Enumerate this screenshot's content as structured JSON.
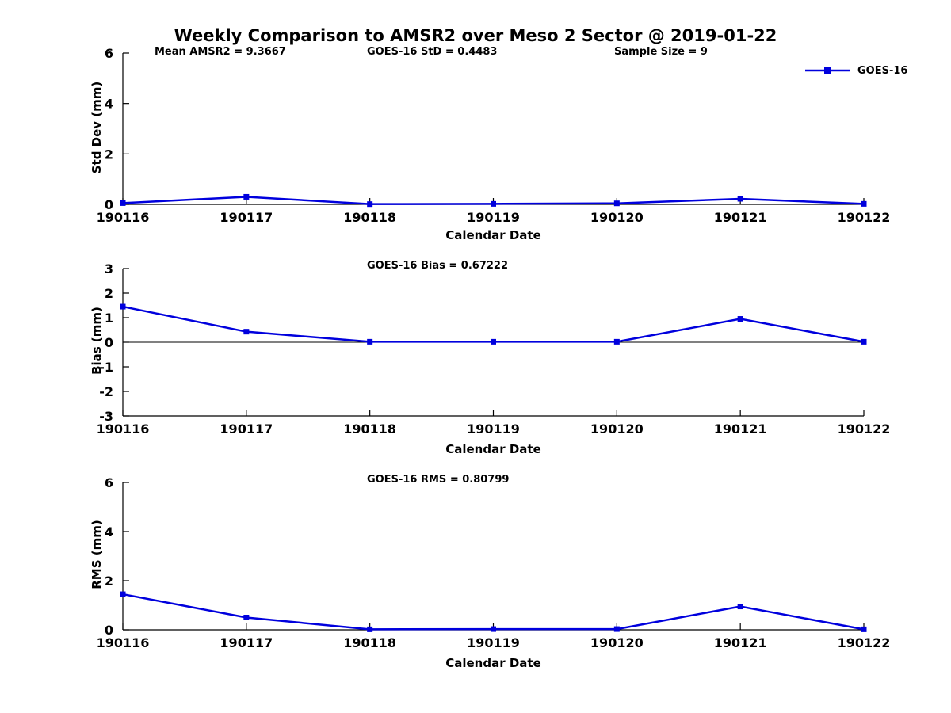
{
  "title": "Weekly Comparison to AMSR2 over Meso 2 Sector @ 2019-01-22",
  "header_stats": {
    "mean_amsr2": "Mean AMSR2 = 9.3667",
    "goes16_std": "GOES-16 StD = 0.4483",
    "sample_size": "Sample Size = 9"
  },
  "legend": {
    "label": "GOES-16",
    "color": "#0000dd",
    "position": "top-right",
    "marker": "square"
  },
  "colors": {
    "series": "#0000dd",
    "axis": "#000000",
    "background": "#ffffff",
    "text": "#000000"
  },
  "chart_data": [
    {
      "type": "line",
      "panel": "std-dev",
      "annotation": "",
      "ylabel": "Std Dev (mm)",
      "xlabel": "Calendar Date",
      "ylim": [
        0,
        6
      ],
      "yticks": [
        0,
        2,
        4,
        6
      ],
      "grid": false,
      "zero_line": false,
      "categories": [
        "190116",
        "190117",
        "190118",
        "190119",
        "190120",
        "190121",
        "190122"
      ],
      "series": [
        {
          "name": "GOES-16",
          "color": "#0000dd",
          "marker": "square",
          "values": [
            0.05,
            0.3,
            0.01,
            0.02,
            0.04,
            0.22,
            0.02
          ]
        }
      ]
    },
    {
      "type": "line",
      "panel": "bias",
      "annotation": "GOES-16 Bias  = 0.67222",
      "ylabel": "Bias (mm)",
      "xlabel": "Calendar Date",
      "ylim": [
        -3,
        3
      ],
      "yticks": [
        3,
        2,
        1,
        0,
        -1,
        -2,
        -3
      ],
      "grid": false,
      "zero_line": true,
      "categories": [
        "190116",
        "190117",
        "190118",
        "190119",
        "190120",
        "190121",
        "190122"
      ],
      "series": [
        {
          "name": "GOES-16",
          "color": "#0000dd",
          "marker": "square",
          "values": [
            1.45,
            0.43,
            0.02,
            0.02,
            0.02,
            0.95,
            0.02
          ]
        }
      ]
    },
    {
      "type": "line",
      "panel": "rms",
      "annotation": "GOES-16 RMS = 0.80799",
      "ylabel": "RMS (mm)",
      "xlabel": "Calendar Date",
      "ylim": [
        0,
        6
      ],
      "yticks": [
        0,
        2,
        4,
        6
      ],
      "grid": false,
      "zero_line": false,
      "categories": [
        "190116",
        "190117",
        "190118",
        "190119",
        "190120",
        "190121",
        "190122"
      ],
      "series": [
        {
          "name": "GOES-16",
          "color": "#0000dd",
          "marker": "square",
          "values": [
            1.45,
            0.5,
            0.02,
            0.03,
            0.03,
            0.95,
            0.02
          ]
        }
      ]
    }
  ]
}
